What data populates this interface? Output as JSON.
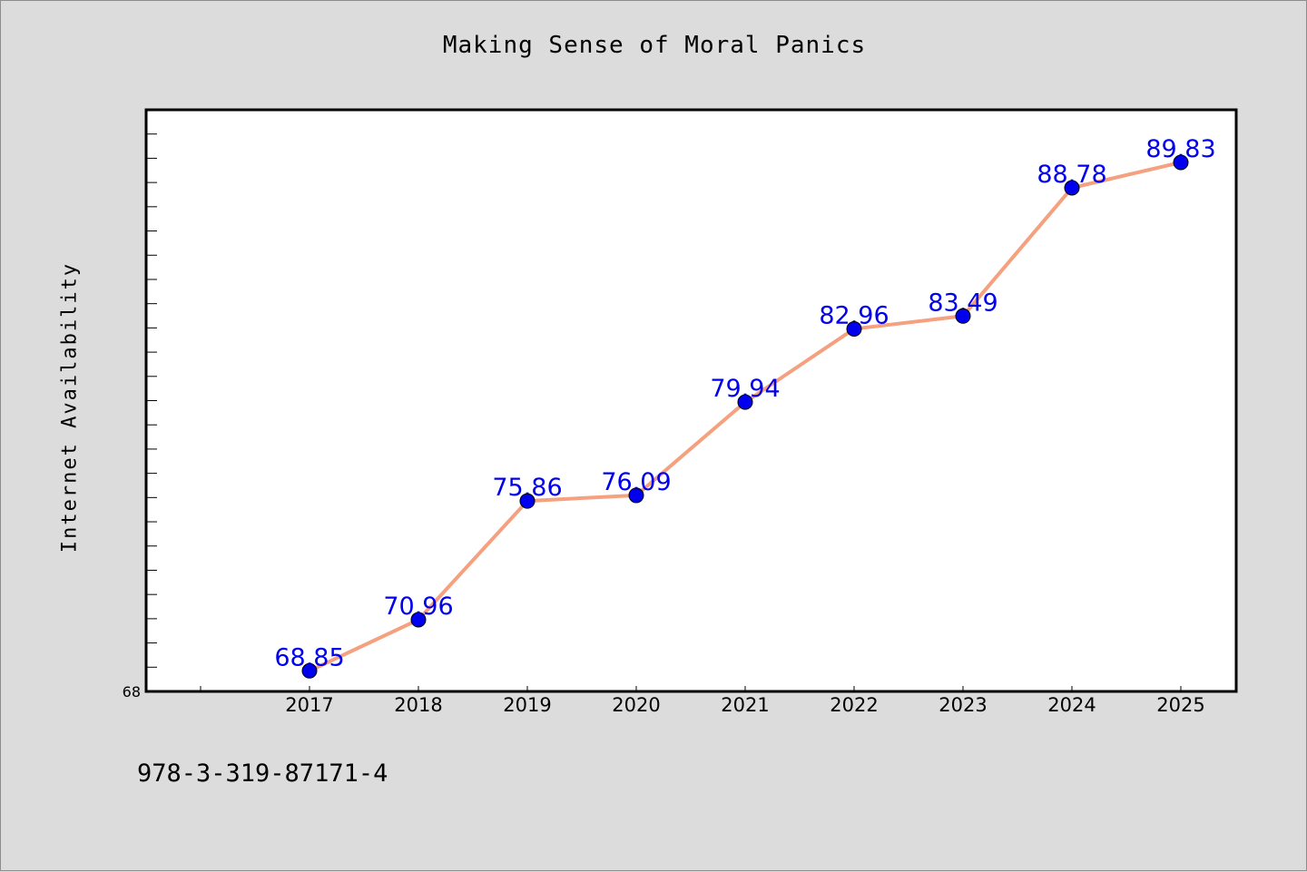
{
  "chart_data": {
    "type": "line",
    "title": "Making Sense of Moral Panics",
    "xlabel": "",
    "ylabel": "Internet Availability",
    "categories": [
      "2017",
      "2018",
      "2019",
      "2020",
      "2021",
      "2022",
      "2023",
      "2024",
      "2025"
    ],
    "series": [
      {
        "values": [
          68.85,
          70.96,
          75.86,
          76.09,
          79.94,
          82.96,
          83.49,
          88.78,
          89.83
        ],
        "labels": [
          "68.85",
          "70.96",
          "75.86",
          "76.09",
          "79.94",
          "82.96",
          "83.49",
          "88.78",
          "89.83"
        ]
      }
    ],
    "ylim": [
      68,
      92
    ],
    "y_tick_labels_shown": [
      "68"
    ],
    "grid": false,
    "legend": "none",
    "colors": {
      "line": "#f5a07e",
      "marker": "#0000ee",
      "data_label": "#0000ee",
      "plot_background": "#ffffff",
      "figure_background": "#dcdcdc"
    }
  },
  "footer": {
    "code": "978-3-319-87171-4"
  }
}
